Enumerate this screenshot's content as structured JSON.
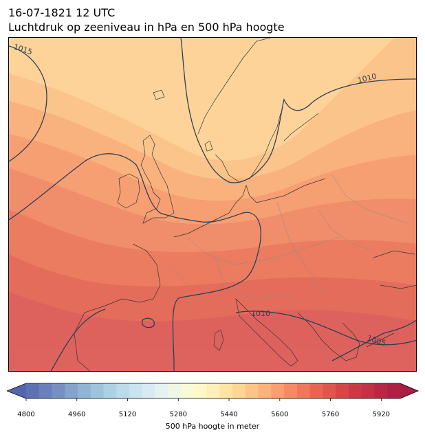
{
  "title": {
    "date": "16-07-1821 12 UTC",
    "main": "Luchtdruk op zeeniveau in hPa en 500 hPa hoogte"
  },
  "map": {
    "isobar_labels": [
      "1015",
      "1010",
      "1010",
      "1005"
    ],
    "isobar_color": "#2b3f55",
    "coastline_color": "#333333",
    "border_color": "#8a8a8a"
  },
  "colorbar": {
    "label": "500 hPa hoogte in meter",
    "min": 4800,
    "max": 5980,
    "step": 40,
    "ticks": [
      "4800",
      "4960",
      "5120",
      "5280",
      "5440",
      "5600",
      "5760",
      "5920"
    ],
    "extend": "both",
    "colormap": "RdYlBu_r",
    "colors": [
      "#5e71b5",
      "#6a80bc",
      "#7690c4",
      "#83a2cc",
      "#90b4d4",
      "#9ec4dc",
      "#acd1e4",
      "#bbdbea",
      "#c9e3ef",
      "#d8ebf3",
      "#e5f2f2",
      "#eef7e6",
      "#f7fad5",
      "#fef8c6",
      "#fdefb5",
      "#fde4a4",
      "#fdd595",
      "#fcc587",
      "#fbb27b",
      "#f89e6f",
      "#f48b64",
      "#ef785a",
      "#e86651",
      "#df564b",
      "#d54646",
      "#cb3a44",
      "#c23144",
      "#b82845",
      "#ae2145"
    ],
    "under_color": "#5566ae",
    "over_color": "#a81d46"
  }
}
